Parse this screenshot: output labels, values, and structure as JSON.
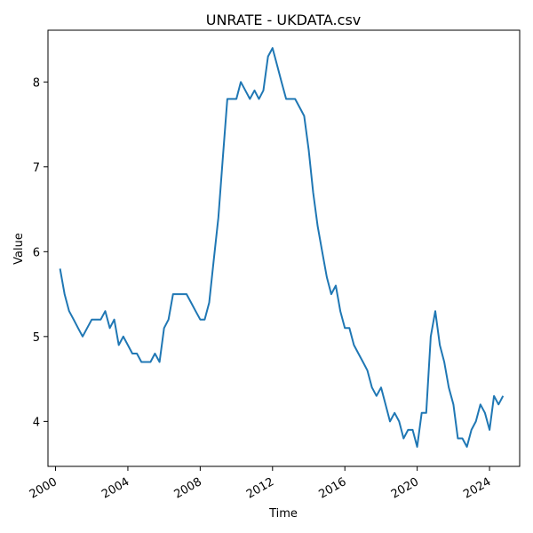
{
  "chart_data": {
    "type": "line",
    "title": "UNRATE - UKDATA.csv",
    "xlabel": "Time",
    "ylabel": "Value",
    "x_axis": "date",
    "xlim": [
      "1999-08-01",
      "2025-09-01"
    ],
    "ylim": [
      3.47,
      8.61
    ],
    "x_ticks": [
      "2000",
      "2004",
      "2008",
      "2012",
      "2016",
      "2020",
      "2024"
    ],
    "y_ticks": [
      "4",
      "5",
      "6",
      "7",
      "8"
    ],
    "grid": false,
    "legend": "none",
    "series": [
      {
        "color": "#1f77b4",
        "points": [
          [
            "2000-04-01",
            5.8
          ],
          [
            "2000-07-01",
            5.5
          ],
          [
            "2000-10-01",
            5.3
          ],
          [
            "2001-01-01",
            5.2
          ],
          [
            "2001-04-01",
            5.1
          ],
          [
            "2001-07-01",
            5.0
          ],
          [
            "2001-10-01",
            5.1
          ],
          [
            "2002-01-01",
            5.2
          ],
          [
            "2002-04-01",
            5.2
          ],
          [
            "2002-07-01",
            5.2
          ],
          [
            "2002-10-01",
            5.3
          ],
          [
            "2003-01-01",
            5.1
          ],
          [
            "2003-04-01",
            5.2
          ],
          [
            "2003-07-01",
            4.9
          ],
          [
            "2003-10-01",
            5.0
          ],
          [
            "2004-01-01",
            4.9
          ],
          [
            "2004-04-01",
            4.8
          ],
          [
            "2004-07-01",
            4.8
          ],
          [
            "2004-10-01",
            4.7
          ],
          [
            "2005-01-01",
            4.7
          ],
          [
            "2005-04-01",
            4.7
          ],
          [
            "2005-07-01",
            4.8
          ],
          [
            "2005-10-01",
            4.7
          ],
          [
            "2006-01-01",
            5.1
          ],
          [
            "2006-04-01",
            5.2
          ],
          [
            "2006-07-01",
            5.5
          ],
          [
            "2006-10-01",
            5.5
          ],
          [
            "2007-01-01",
            5.5
          ],
          [
            "2007-04-01",
            5.5
          ],
          [
            "2007-07-01",
            5.4
          ],
          [
            "2007-10-01",
            5.3
          ],
          [
            "2008-01-01",
            5.2
          ],
          [
            "2008-04-01",
            5.2
          ],
          [
            "2008-07-01",
            5.4
          ],
          [
            "2008-10-01",
            5.9
          ],
          [
            "2009-01-01",
            6.4
          ],
          [
            "2009-04-01",
            7.1
          ],
          [
            "2009-07-01",
            7.8
          ],
          [
            "2009-10-01",
            7.8
          ],
          [
            "2010-01-01",
            7.8
          ],
          [
            "2010-04-01",
            8.0
          ],
          [
            "2010-07-01",
            7.9
          ],
          [
            "2010-10-01",
            7.8
          ],
          [
            "2011-01-01",
            7.9
          ],
          [
            "2011-04-01",
            7.8
          ],
          [
            "2011-07-01",
            7.9
          ],
          [
            "2011-10-01",
            8.3
          ],
          [
            "2012-01-01",
            8.4
          ],
          [
            "2012-04-01",
            8.2
          ],
          [
            "2012-07-01",
            8.0
          ],
          [
            "2012-10-01",
            7.8
          ],
          [
            "2013-01-01",
            7.8
          ],
          [
            "2013-04-01",
            7.8
          ],
          [
            "2013-07-01",
            7.7
          ],
          [
            "2013-10-01",
            7.6
          ],
          [
            "2014-01-01",
            7.2
          ],
          [
            "2014-04-01",
            6.7
          ],
          [
            "2014-07-01",
            6.3
          ],
          [
            "2014-10-01",
            6.0
          ],
          [
            "2015-01-01",
            5.7
          ],
          [
            "2015-04-01",
            5.5
          ],
          [
            "2015-07-01",
            5.6
          ],
          [
            "2015-10-01",
            5.3
          ],
          [
            "2016-01-01",
            5.1
          ],
          [
            "2016-04-01",
            5.1
          ],
          [
            "2016-07-01",
            4.9
          ],
          [
            "2016-10-01",
            4.8
          ],
          [
            "2017-01-01",
            4.7
          ],
          [
            "2017-04-01",
            4.6
          ],
          [
            "2017-07-01",
            4.4
          ],
          [
            "2017-10-01",
            4.3
          ],
          [
            "2018-01-01",
            4.4
          ],
          [
            "2018-04-01",
            4.2
          ],
          [
            "2018-07-01",
            4.0
          ],
          [
            "2018-10-01",
            4.1
          ],
          [
            "2019-01-01",
            4.0
          ],
          [
            "2019-04-01",
            3.8
          ],
          [
            "2019-07-01",
            3.9
          ],
          [
            "2019-10-01",
            3.9
          ],
          [
            "2020-01-01",
            3.7
          ],
          [
            "2020-04-01",
            4.1
          ],
          [
            "2020-07-01",
            4.1
          ],
          [
            "2020-10-01",
            5.0
          ],
          [
            "2021-01-01",
            5.3
          ],
          [
            "2021-04-01",
            4.9
          ],
          [
            "2021-07-01",
            4.7
          ],
          [
            "2021-10-01",
            4.4
          ],
          [
            "2022-01-01",
            4.2
          ],
          [
            "2022-04-01",
            3.8
          ],
          [
            "2022-07-01",
            3.8
          ],
          [
            "2022-10-01",
            3.7
          ],
          [
            "2023-01-01",
            3.9
          ],
          [
            "2023-04-01",
            4.0
          ],
          [
            "2023-07-01",
            4.2
          ],
          [
            "2023-10-01",
            4.1
          ],
          [
            "2024-01-01",
            3.9
          ],
          [
            "2024-04-01",
            4.3
          ],
          [
            "2024-07-01",
            4.2
          ],
          [
            "2024-10-01",
            4.3
          ]
        ]
      }
    ]
  }
}
